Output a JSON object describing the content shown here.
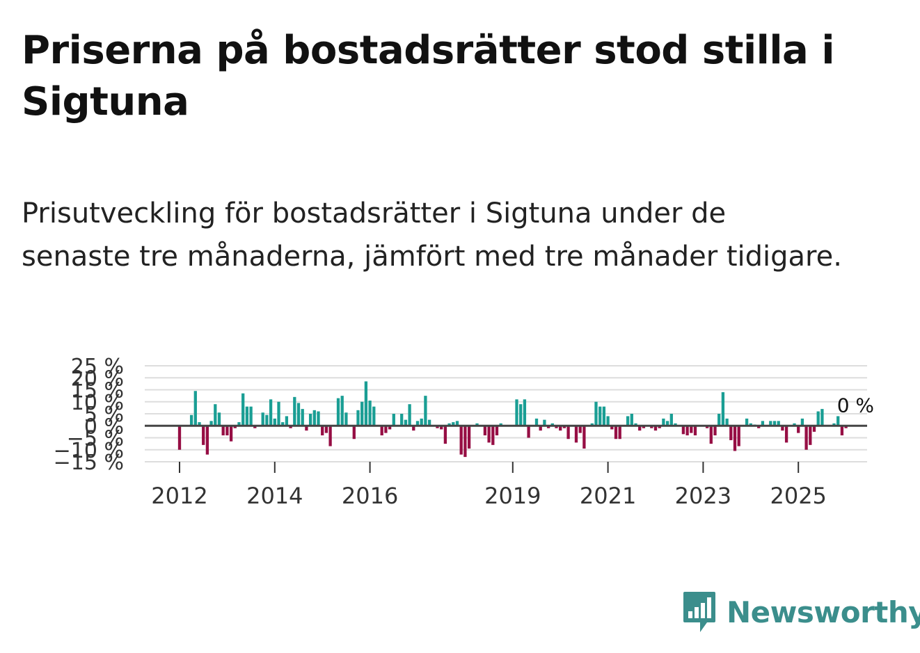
{
  "title": "Priserna på bostadsrätter stod stilla i Sigtuna",
  "subtitle": "Prisutveckling för bostadsrätter i Sigtuna under de senaste tre månaderna, jämfört med tre månader tidigare.",
  "brand": {
    "name": "Newsworthy",
    "color": "#3b8e8c"
  },
  "colors": {
    "positive": "#1a9e94",
    "negative": "#960e44",
    "grid": "#dddddd",
    "zero_line": "#444444"
  },
  "chart_data": {
    "type": "bar",
    "title": "Priserna på bostadsrätter stod stilla i Sigtuna",
    "xlabel": "",
    "ylabel": "",
    "ylim": [
      -15,
      25
    ],
    "y_ticks": [
      25,
      20,
      15,
      10,
      5,
      0,
      -5,
      -10,
      -15
    ],
    "y_tick_labels": [
      "25 %",
      "20 %",
      "15 %",
      "10 %",
      "5 %",
      "0 %",
      "−5 %",
      "−10 %",
      "−15 %"
    ],
    "x_tick_labels": [
      {
        "label": "2012",
        "year": 2012
      },
      {
        "label": "2014",
        "year": 2014
      },
      {
        "label": "2016",
        "year": 2016
      },
      {
        "label": "2019",
        "year": 2019
      },
      {
        "label": "2021",
        "year": 2021
      },
      {
        "label": "2023",
        "year": 2023
      },
      {
        "label": "2025",
        "year": 2025
      }
    ],
    "annotation": {
      "label": "0 %",
      "value": 0
    },
    "start": {
      "year": 2011,
      "month": 12
    },
    "values": [
      -10,
      0,
      0,
      4.5,
      14.5,
      1.5,
      -8,
      -12,
      2,
      9,
      5.5,
      -4,
      -4,
      -6.5,
      -1,
      1.5,
      13.5,
      8,
      8,
      -1,
      0,
      5.5,
      4.5,
      11,
      3,
      10,
      1.5,
      4,
      -1,
      12,
      9.5,
      7,
      -2,
      5,
      6.5,
      6,
      -4,
      -3,
      -8.5,
      0,
      11.5,
      12.5,
      5.5,
      0,
      -5.5,
      6.5,
      10,
      18.5,
      10.5,
      8,
      0,
      -4,
      -3,
      -1.5,
      5,
      0,
      5,
      2.5,
      9,
      -2,
      2,
      3,
      12.5,
      2.5,
      0,
      -1,
      -1.5,
      -7.5,
      1,
      1.5,
      2,
      -12,
      -13,
      -9.5,
      0,
      1,
      0,
      -4,
      -7,
      -8,
      -4,
      1,
      0,
      0,
      0,
      11,
      9,
      11,
      -5,
      0,
      3,
      -2,
      2.5,
      -1,
      1,
      -1,
      -2,
      -1,
      -5.5,
      0,
      -7,
      -3,
      -9.5,
      0,
      1,
      10,
      8,
      8,
      4,
      -1.5,
      -5.5,
      -5.5,
      0,
      4,
      5,
      1,
      -2,
      -1,
      0,
      -1,
      -2,
      -1,
      3,
      2,
      5,
      1,
      0,
      -3.5,
      -4,
      -3,
      -4,
      0,
      0,
      -1,
      -7.5,
      -4,
      5,
      14,
      3,
      -6,
      -10.5,
      -8.5,
      0,
      3,
      1,
      0.5,
      -1,
      2,
      0,
      2,
      2,
      2,
      -2,
      -7,
      0,
      1,
      -3,
      3,
      -10,
      -8,
      -2.5,
      6,
      7,
      0,
      0,
      1,
      4,
      -4,
      -1,
      0,
      0,
      0
    ]
  }
}
